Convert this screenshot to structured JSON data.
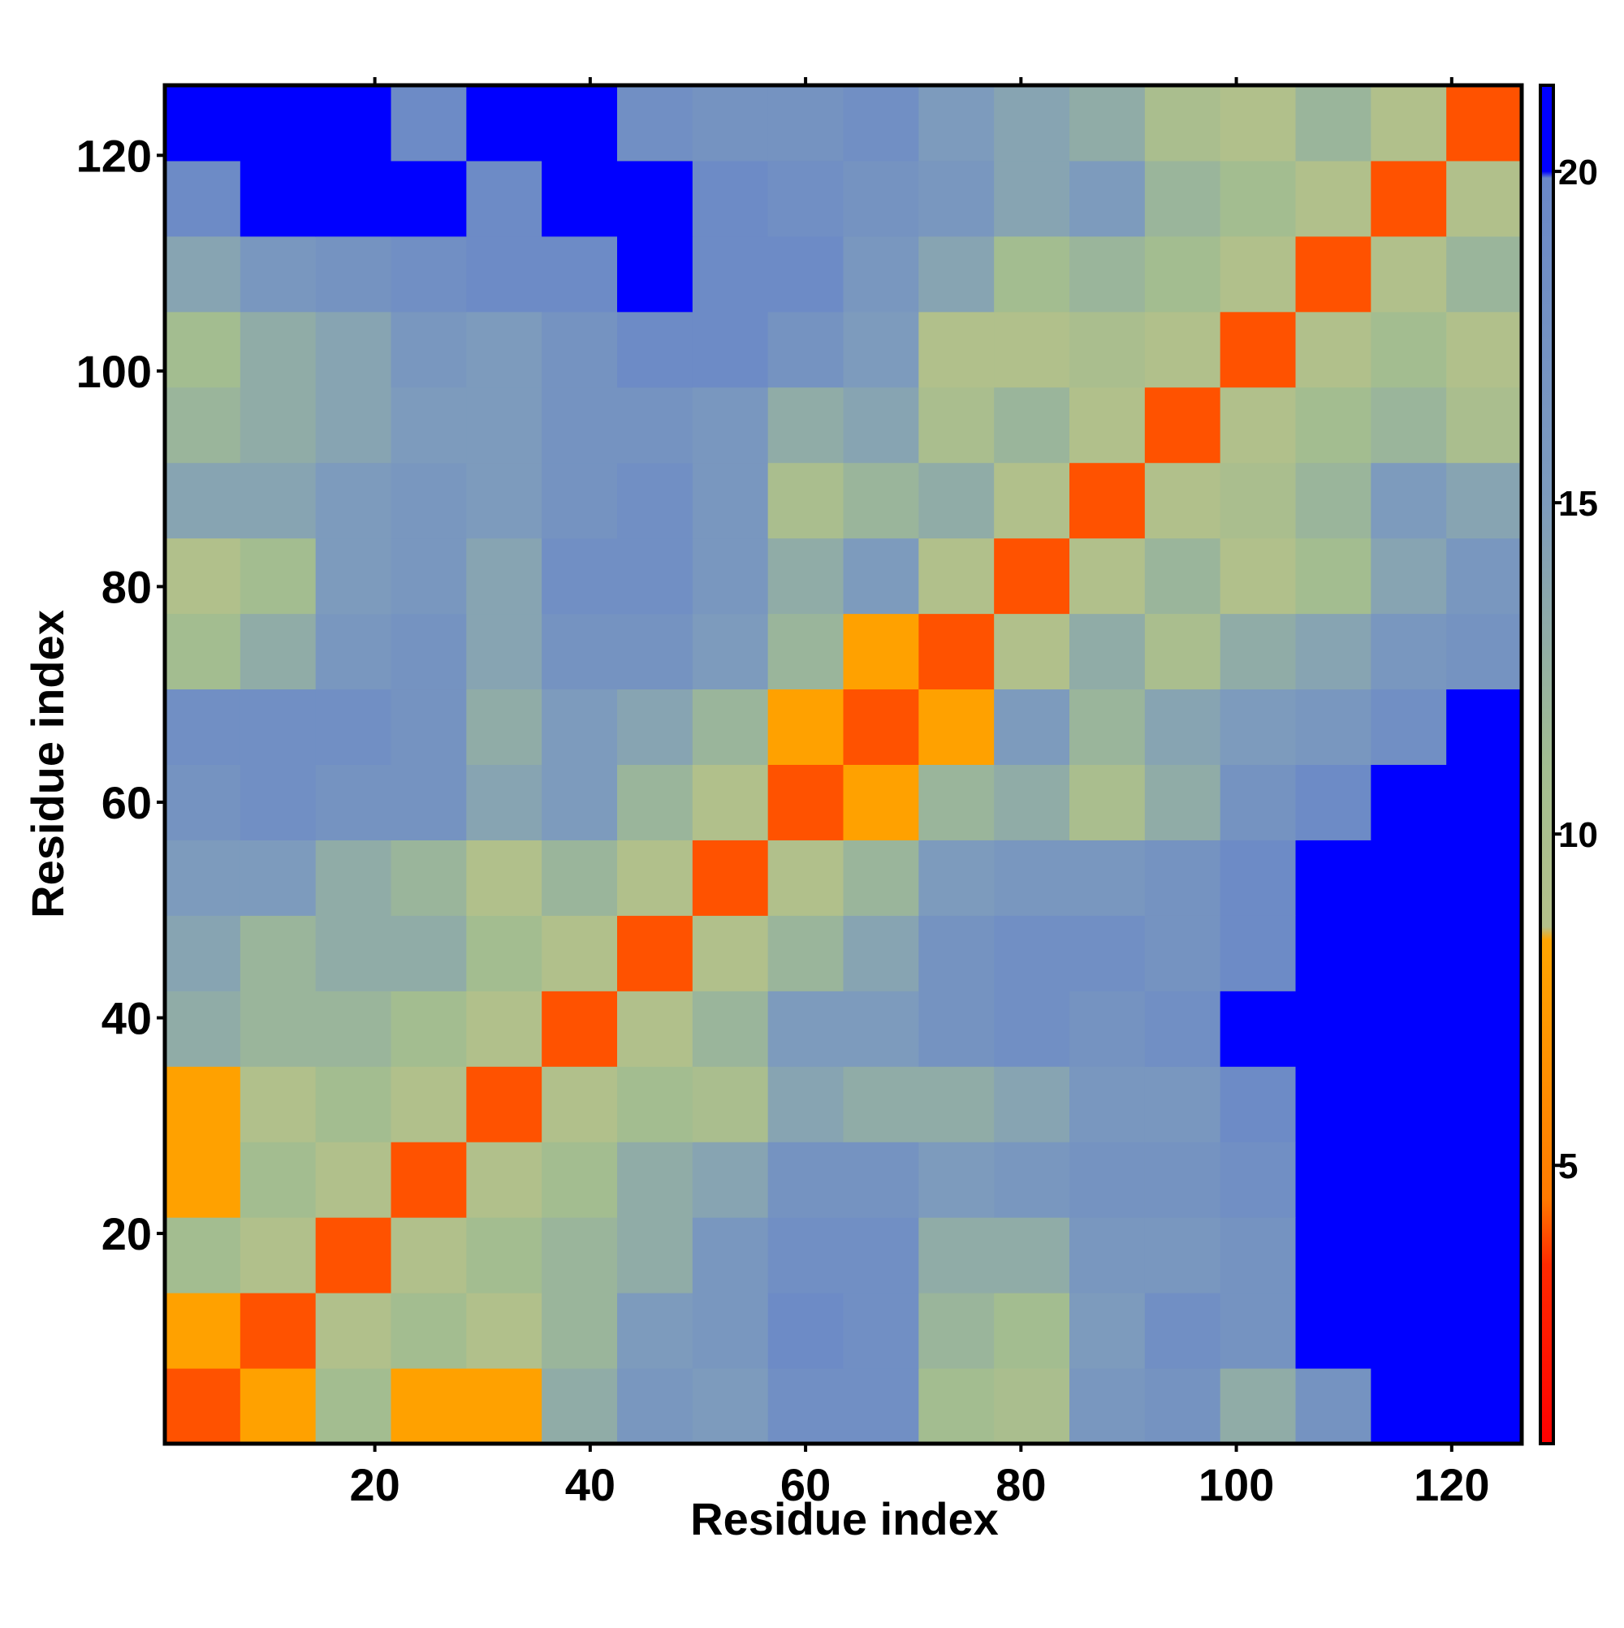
{
  "chart_data": {
    "type": "heatmap",
    "xlabel": "Residue index",
    "ylabel": "Residue index",
    "x_edges": [
      0.5,
      7.5,
      14.5,
      21.5,
      28.5,
      35.5,
      42.5,
      49.5,
      56.5,
      63.5,
      70.5,
      77.5,
      84.5,
      91.5,
      98.5,
      105.5,
      112.5,
      119.5,
      126.5
    ],
    "y_edges": [
      0.5,
      7.5,
      14.5,
      21.5,
      28.5,
      35.5,
      42.5,
      49.5,
      56.5,
      63.5,
      70.5,
      77.5,
      84.5,
      91.5,
      98.5,
      105.5,
      112.5,
      119.5,
      126.5
    ],
    "z": [
      [
        4,
        8,
        11,
        8,
        8,
        13,
        16,
        15,
        18,
        18,
        11,
        10,
        16,
        17,
        13,
        17,
        20,
        20
      ],
      [
        8,
        4,
        9,
        11,
        9,
        12,
        15,
        16,
        19,
        18,
        12,
        11,
        15,
        18,
        17,
        20,
        21,
        20
      ],
      [
        11,
        9,
        4,
        9,
        11,
        12,
        13,
        16,
        18,
        18,
        13,
        13,
        16,
        16,
        17,
        21,
        21,
        21
      ],
      [
        8,
        11,
        9,
        4,
        9,
        11,
        13,
        14,
        17,
        17,
        15,
        16,
        17,
        17,
        18,
        21,
        21,
        21
      ],
      [
        8,
        9,
        11,
        9,
        4,
        9,
        11,
        10,
        14,
        13,
        13,
        14,
        16,
        16,
        19,
        21,
        21,
        21
      ],
      [
        13,
        12,
        12,
        11,
        9,
        4,
        9,
        12,
        15,
        15,
        17,
        18,
        17,
        18,
        20,
        21,
        21,
        21
      ],
      [
        14,
        12,
        13,
        13,
        11,
        9,
        4,
        9,
        12,
        14,
        17,
        18,
        18,
        17,
        19,
        21,
        21,
        21
      ],
      [
        15,
        15,
        13,
        12,
        9,
        12,
        9,
        4,
        9,
        12,
        15,
        16,
        16,
        17,
        19,
        20,
        21,
        21
      ],
      [
        17,
        18,
        17,
        17,
        14,
        15,
        12,
        9,
        4,
        8,
        12,
        13,
        10,
        13,
        17,
        19,
        20,
        21
      ],
      [
        18,
        18,
        18,
        17,
        13,
        15,
        14,
        12,
        8,
        4,
        8,
        15,
        12,
        14,
        15,
        16,
        18,
        20
      ],
      [
        11,
        13,
        16,
        17,
        14,
        17,
        17,
        15,
        12,
        8,
        4,
        9,
        13,
        10,
        13,
        14,
        16,
        17
      ],
      [
        9,
        11,
        15,
        16,
        14,
        18,
        18,
        16,
        13,
        15,
        9,
        4,
        9,
        12,
        9,
        11,
        14,
        16
      ],
      [
        14,
        14,
        15,
        16,
        15,
        17,
        18,
        16,
        10,
        12,
        13,
        9,
        4,
        9,
        10,
        12,
        15,
        14
      ],
      [
        12,
        13,
        14,
        15,
        15,
        17,
        17,
        16,
        13,
        14,
        10,
        12,
        9,
        4,
        9,
        11,
        12,
        10
      ],
      [
        11,
        13,
        14,
        16,
        15,
        17,
        19,
        19,
        17,
        15,
        9,
        9,
        10,
        9,
        4,
        9,
        11,
        9
      ],
      [
        14,
        16,
        17,
        18,
        19,
        19,
        20,
        19,
        19,
        16,
        14,
        11,
        12,
        11,
        9,
        4,
        9,
        12
      ],
      [
        19,
        20,
        20,
        20,
        19,
        20,
        20,
        19,
        18,
        17,
        16,
        14,
        15,
        12,
        11,
        9,
        4,
        9
      ],
      [
        20,
        21,
        20,
        19,
        20,
        20,
        18,
        17,
        17,
        18,
        15,
        14,
        13,
        10,
        9,
        12,
        9,
        4
      ]
    ],
    "xlim": [
      0.5,
      126.5
    ],
    "ylim": [
      0.5,
      126.5
    ],
    "xticks": [
      20,
      40,
      60,
      80,
      100,
      120
    ],
    "yticks": [
      20,
      40,
      60,
      80,
      100,
      120
    ],
    "colorbar": {
      "lim": [
        0.8,
        21.3
      ],
      "ticks": [
        5,
        10,
        15,
        20
      ],
      "colorscale": [
        [
          0.8,
          "#ff0000"
        ],
        [
          3.5,
          "#ff2a00"
        ],
        [
          4.5,
          "#ff7a00"
        ],
        [
          8.4,
          "#ffa500"
        ],
        [
          8.6,
          "#b4c08a"
        ],
        [
          11,
          "#a3bd90"
        ],
        [
          15,
          "#7d9bbd"
        ],
        [
          19.9,
          "#6a88c8"
        ],
        [
          20,
          "#0000ff"
        ],
        [
          21.3,
          "#0000ff"
        ]
      ]
    }
  }
}
